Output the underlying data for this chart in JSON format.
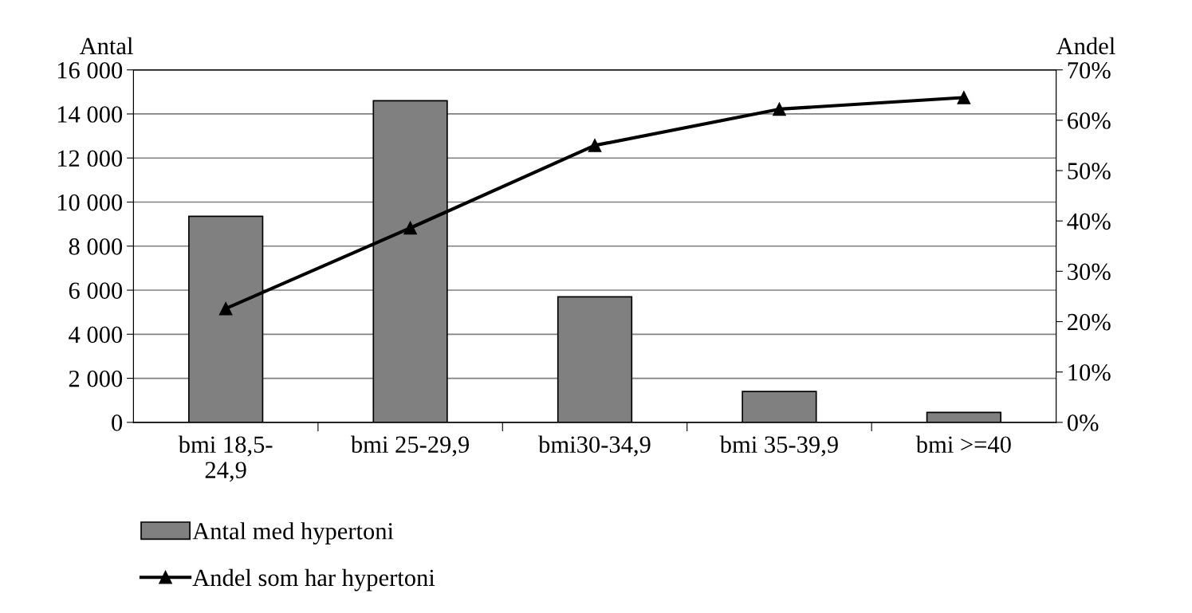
{
  "chart_data": {
    "type": "bar",
    "categories": [
      "bmi 18,5-\n24,9",
      "bmi 25-29,9",
      "bmi30-34,9",
      "bmi 35-39,9",
      "bmi >=40"
    ],
    "ylabel": "Antal",
    "y2label": "Andel",
    "series": [
      {
        "name": "Antal med hypertoni",
        "color": "#808080",
        "values": [
          9350,
          14600,
          5700,
          1400,
          450
        ]
      },
      {
        "name": "Andel som har hypertoni",
        "type": "line",
        "axis": "y2",
        "color": "#000000",
        "values": [
          22.6,
          38.6,
          55.0,
          62.2,
          64.5
        ]
      }
    ],
    "ylim": [
      0,
      16000
    ],
    "yticks": [
      {
        "value": 0,
        "label": "0"
      },
      {
        "value": 2000,
        "label": "2 000"
      },
      {
        "value": 4000,
        "label": "4 000"
      },
      {
        "value": 6000,
        "label": "6 000"
      },
      {
        "value": 8000,
        "label": "8 000"
      },
      {
        "value": 10000,
        "label": "10 000"
      },
      {
        "value": 12000,
        "label": "12 000"
      },
      {
        "value": 14000,
        "label": "14 000"
      },
      {
        "value": 16000,
        "label": "16 000"
      }
    ],
    "y2lim": [
      0,
      70
    ],
    "y2ticks": [
      {
        "value": 0,
        "label": "0%"
      },
      {
        "value": 10,
        "label": "10%"
      },
      {
        "value": 20,
        "label": "20%"
      },
      {
        "value": 30,
        "label": "30%"
      },
      {
        "value": 40,
        "label": "40%"
      },
      {
        "value": 50,
        "label": "50%"
      },
      {
        "value": 60,
        "label": "60%"
      },
      {
        "value": 70,
        "label": "70%"
      }
    ],
    "grid": "y",
    "legend": "bottom left",
    "marker": "triangle",
    "line_style": "solid"
  }
}
